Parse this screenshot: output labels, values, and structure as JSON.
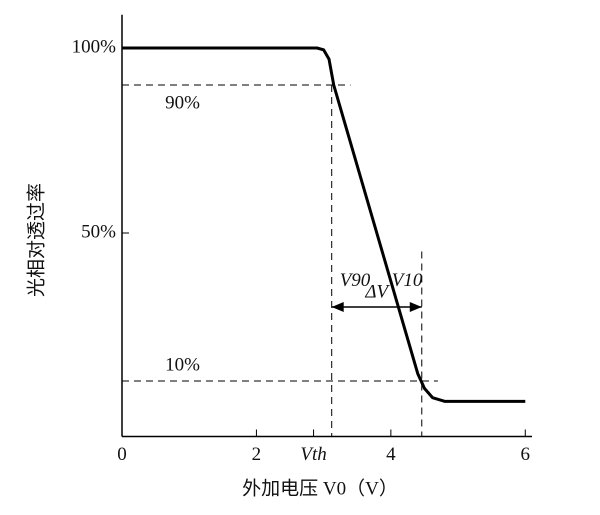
{
  "chart_data": {
    "type": "line",
    "x": [
      0,
      2.9,
      3.0,
      3.08,
      3.15,
      4.4,
      4.5,
      4.62,
      4.8,
      6.0
    ],
    "values": [
      100,
      100,
      99.5,
      97,
      90,
      12,
      8,
      5.5,
      4.5,
      4.5
    ],
    "color": "#000",
    "xlabel": "外加电压 V0（V）",
    "ylabel": "光相对透过率",
    "xlim": [
      0,
      6.1
    ],
    "ylim": [
      -5,
      109
    ],
    "xticks": [
      0,
      2,
      {
        "value": 2.85,
        "label": "Vth"
      },
      4,
      6
    ],
    "yticks": [
      {
        "value": 100,
        "label": "100%"
      },
      {
        "value": 50,
        "label": "50%"
      }
    ],
    "hlines": [
      {
        "y": 90,
        "x_end": 3.4,
        "label": "90%"
      },
      {
        "y": 10,
        "x_end": 4.7,
        "label": "10%"
      }
    ],
    "vlines": [
      {
        "x": 3.12,
        "y_top": 90,
        "label": "V90"
      },
      {
        "x": 4.46,
        "y_top": 45,
        "label": "V10"
      }
    ],
    "arrow": {
      "from": 3.12,
      "to": 4.46,
      "y": 30,
      "label": "ΔV"
    }
  }
}
